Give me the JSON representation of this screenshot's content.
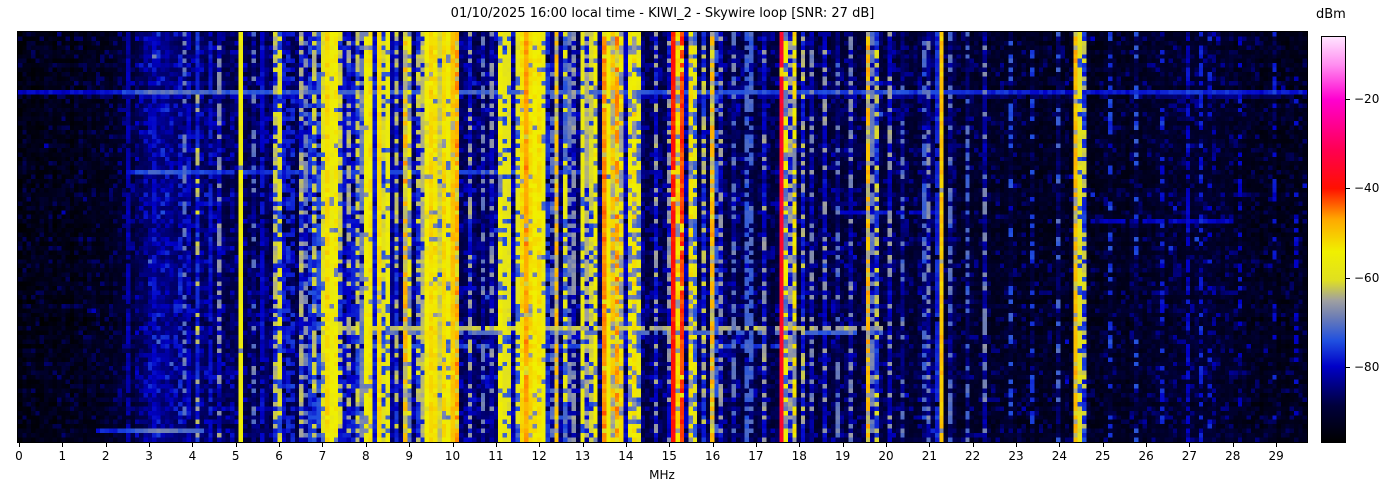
{
  "figure": {
    "title": "01/10/2025 16:00 local time - KIWI_2 - Skywire loop [SNR: 27 dB]",
    "xlabel": "MHz",
    "colorbar_label": "dBm"
  },
  "axes": {
    "colorbar_ticks": [
      {
        "value": -20,
        "label": "−20"
      },
      {
        "value": -40,
        "label": "−40"
      },
      {
        "value": -60,
        "label": "−60"
      },
      {
        "value": -80,
        "label": "−80"
      }
    ]
  },
  "chart_data": {
    "type": "heatmap",
    "subtype": "spectrogram-waterfall",
    "title": "01/10/2025 16:00 local time - KIWI_2 - Skywire loop [SNR: 27 dB]",
    "xlabel": "MHz",
    "colorbar_label": "dBm",
    "freq_min": 0,
    "freq_max": 29.75,
    "value_min": -97,
    "value_max": -6,
    "value_unit": "dBm",
    "x_tick_values": [
      0,
      1,
      2,
      3,
      4,
      5,
      6,
      7,
      8,
      9,
      10,
      11,
      12,
      13,
      14,
      15,
      16,
      17,
      18,
      19,
      20,
      21,
      22,
      23,
      24,
      25,
      26,
      27,
      28,
      29
    ],
    "colorbar_tick_values": [
      -20,
      -40,
      -60,
      -80
    ],
    "cols": 298,
    "rows": 92,
    "seed": 20250116,
    "colormap": [
      [
        0.0,
        "#000000"
      ],
      [
        0.09,
        "#00003c"
      ],
      [
        0.187,
        "#0000c8"
      ],
      [
        0.25,
        "#2050e0"
      ],
      [
        0.31,
        "#6f7fb4"
      ],
      [
        0.35,
        "#a0a0a0"
      ],
      [
        0.4,
        "#e0e020"
      ],
      [
        0.47,
        "#f0f000"
      ],
      [
        0.55,
        "#ffa800"
      ],
      [
        0.626,
        "#ff1000"
      ],
      [
        0.72,
        "#ff0050"
      ],
      [
        0.846,
        "#ff00d0"
      ],
      [
        0.93,
        "#ff8cf0"
      ],
      [
        1.0,
        "#ffe4ff"
      ]
    ],
    "noise_floor_dbm": [
      [
        0,
        -97
      ],
      [
        1,
        -96
      ],
      [
        2.2,
        -94.5
      ],
      [
        2.7,
        -90
      ],
      [
        3.1,
        -86
      ],
      [
        3.5,
        -85.5
      ],
      [
        3.8,
        -87.5
      ],
      [
        4.5,
        -89
      ],
      [
        6,
        -90
      ],
      [
        7,
        -89
      ],
      [
        9,
        -88.5
      ],
      [
        10.5,
        -88.5
      ],
      [
        12,
        -89
      ],
      [
        14,
        -89.5
      ],
      [
        16,
        -90.5
      ],
      [
        17,
        -90
      ],
      [
        18.5,
        -91
      ],
      [
        20,
        -91
      ],
      [
        21,
        -92.5
      ],
      [
        22,
        -93
      ],
      [
        23,
        -94
      ],
      [
        24.5,
        -94.5
      ],
      [
        26,
        -94
      ],
      [
        27,
        -92.5
      ],
      [
        27.8,
        -93
      ],
      [
        28.5,
        -95
      ],
      [
        29.75,
        -95.5
      ]
    ],
    "signals": [
      [
        2.55,
        0.06,
        -82,
        0.9
      ],
      [
        3.15,
        0.1,
        -80,
        0.8
      ],
      [
        3.8,
        0.06,
        -62,
        0.35
      ],
      [
        3.95,
        0.06,
        -80,
        0.8
      ],
      [
        4.17,
        0.06,
        -63,
        0.25
      ],
      [
        4.45,
        0.06,
        -79,
        0.9
      ],
      [
        4.65,
        0.06,
        -67,
        0.4
      ],
      [
        5.14,
        0.09,
        -56,
        0.97
      ],
      [
        5.45,
        0.06,
        -70,
        0.3
      ],
      [
        5.62,
        0.06,
        -80,
        0.8
      ],
      [
        5.78,
        0.06,
        -80,
        0.8
      ],
      [
        5.95,
        0.1,
        -63,
        0.6
      ],
      [
        6.07,
        0.07,
        -60,
        0.65
      ],
      [
        6.19,
        0.06,
        -66,
        0.5
      ],
      [
        6.3,
        0.06,
        -72,
        0.4
      ],
      [
        6.52,
        0.06,
        -64,
        0.5
      ],
      [
        6.68,
        0.06,
        -62,
        0.45
      ],
      [
        6.8,
        0.07,
        -60,
        0.6
      ],
      [
        7.0,
        0.07,
        -58,
        0.7
      ],
      [
        7.12,
        0.1,
        -52,
        0.95
      ],
      [
        7.22,
        0.08,
        -56,
        0.9
      ],
      [
        7.3,
        0.08,
        -54,
        0.9
      ],
      [
        7.42,
        0.06,
        -62,
        0.5
      ],
      [
        7.6,
        0.06,
        -60,
        0.5
      ],
      [
        7.8,
        0.06,
        -58,
        0.55
      ],
      [
        8.0,
        0.08,
        -55,
        0.8
      ],
      [
        8.1,
        0.08,
        -53,
        0.9
      ],
      [
        8.33,
        0.1,
        -52,
        0.95
      ],
      [
        8.38,
        0.06,
        -45,
        0.5
      ],
      [
        8.55,
        0.08,
        -56,
        0.8
      ],
      [
        8.75,
        0.06,
        -63,
        0.4
      ],
      [
        8.95,
        0.06,
        -48,
        0.45
      ],
      [
        9.05,
        0.06,
        -55,
        0.5
      ],
      [
        9.2,
        0.06,
        -60,
        0.4
      ],
      [
        9.4,
        0.1,
        -54,
        0.9
      ],
      [
        9.5,
        0.1,
        -52,
        0.9
      ],
      [
        9.65,
        0.1,
        -53,
        0.9
      ],
      [
        9.8,
        0.1,
        -52,
        0.9
      ],
      [
        9.9,
        0.08,
        -55,
        0.8
      ],
      [
        10.05,
        0.12,
        -50,
        0.97
      ],
      [
        10.15,
        0.06,
        -47,
        0.6
      ],
      [
        10.45,
        0.06,
        -65,
        0.4
      ],
      [
        10.7,
        0.06,
        -68,
        0.45
      ],
      [
        10.9,
        0.06,
        -66,
        0.4
      ],
      [
        11.15,
        0.07,
        -55,
        0.75
      ],
      [
        11.28,
        0.07,
        -50,
        0.8
      ],
      [
        11.5,
        0.06,
        -58,
        0.6
      ],
      [
        11.63,
        0.08,
        -52,
        0.9
      ],
      [
        11.75,
        0.09,
        -47,
        0.9
      ],
      [
        11.86,
        0.08,
        -52,
        0.85
      ],
      [
        11.95,
        0.08,
        -54,
        0.85
      ],
      [
        12.05,
        0.08,
        -53,
        0.9
      ],
      [
        12.16,
        0.07,
        -56,
        0.8
      ],
      [
        12.4,
        0.07,
        -49,
        0.55
      ],
      [
        12.6,
        0.06,
        -58,
        0.5
      ],
      [
        12.78,
        0.06,
        -56,
        0.5
      ],
      [
        13.05,
        0.07,
        -57,
        0.7
      ],
      [
        13.18,
        0.07,
        -54,
        0.75
      ],
      [
        13.3,
        0.07,
        -55,
        0.7
      ],
      [
        13.57,
        0.08,
        -44,
        0.95
      ],
      [
        13.7,
        0.06,
        -50,
        0.5
      ],
      [
        13.8,
        0.07,
        -46,
        0.55
      ],
      [
        13.95,
        0.06,
        -52,
        0.5
      ],
      [
        14.1,
        0.06,
        -55,
        0.6
      ],
      [
        14.22,
        0.06,
        -53,
        0.55
      ],
      [
        14.35,
        0.06,
        -57,
        0.5
      ],
      [
        14.7,
        0.05,
        -65,
        0.35
      ],
      [
        15.0,
        0.05,
        -66,
        0.55
      ],
      [
        15.12,
        0.09,
        -40,
        0.97
      ],
      [
        15.25,
        0.07,
        -52,
        0.7
      ],
      [
        15.33,
        0.08,
        -42,
        0.95
      ],
      [
        15.5,
        0.06,
        -53,
        0.6
      ],
      [
        15.62,
        0.05,
        -58,
        0.5
      ],
      [
        15.85,
        0.05,
        -62,
        0.4
      ],
      [
        16.05,
        0.06,
        -48,
        0.5
      ],
      [
        16.2,
        0.05,
        -66,
        0.45
      ],
      [
        16.5,
        0.05,
        -70,
        0.4
      ],
      [
        16.85,
        0.15,
        -72,
        0.6
      ],
      [
        17.2,
        0.05,
        -66,
        0.3
      ],
      [
        17.62,
        0.09,
        -36,
        0.97
      ],
      [
        17.75,
        0.06,
        -55,
        0.5
      ],
      [
        17.88,
        0.06,
        -47,
        0.6
      ],
      [
        18.1,
        0.05,
        -64,
        0.4
      ],
      [
        18.3,
        0.05,
        -68,
        0.4
      ],
      [
        18.6,
        0.05,
        -66,
        0.35
      ],
      [
        18.9,
        0.05,
        -70,
        0.4
      ],
      [
        19.2,
        0.05,
        -68,
        0.35
      ],
      [
        19.65,
        0.06,
        -47,
        0.5
      ],
      [
        19.8,
        0.05,
        -62,
        0.4
      ],
      [
        20.1,
        0.05,
        -66,
        0.4
      ],
      [
        20.4,
        0.05,
        -70,
        0.35
      ],
      [
        20.9,
        0.05,
        -72,
        0.4
      ],
      [
        21.05,
        0.05,
        -62,
        0.4
      ],
      [
        21.3,
        0.08,
        -50,
        0.95
      ],
      [
        21.55,
        0.05,
        -64,
        0.45
      ],
      [
        21.9,
        0.05,
        -72,
        0.35
      ],
      [
        22.3,
        0.05,
        -68,
        0.35
      ],
      [
        22.9,
        0.05,
        -74,
        0.3
      ],
      [
        23.4,
        0.05,
        -76,
        0.3
      ],
      [
        24.0,
        0.05,
        -72,
        0.3
      ],
      [
        24.45,
        0.08,
        -48,
        0.8
      ],
      [
        24.6,
        0.05,
        -62,
        0.4
      ],
      [
        25.2,
        0.05,
        -76,
        0.3
      ],
      [
        25.8,
        0.05,
        -74,
        0.3
      ],
      [
        26.4,
        0.05,
        -78,
        0.35
      ],
      [
        27.0,
        0.08,
        -80,
        0.6
      ],
      [
        27.3,
        0.08,
        -78,
        0.5
      ],
      [
        27.55,
        0.05,
        -66,
        0.2
      ],
      [
        28.2,
        0.05,
        -80,
        0.3
      ],
      [
        29.0,
        0.05,
        -78,
        0.3
      ],
      [
        29.5,
        0.05,
        -80,
        0.3
      ]
    ],
    "time_events": [
      {
        "row": 13,
        "f0": 0,
        "f1": 29.75,
        "boost": 16,
        "duty": 1
      },
      {
        "row": 14,
        "f0": 0,
        "f1": 29.75,
        "boost": 8,
        "duty": 0.6
      },
      {
        "row": 31,
        "f0": 2.5,
        "f1": 13.5,
        "boost": 13,
        "duty": 0.85
      },
      {
        "row": 40,
        "f0": 18.8,
        "f1": 21.3,
        "boost": 12,
        "duty": 0.8
      },
      {
        "row": 42,
        "f0": 24.8,
        "f1": 28.3,
        "boost": 13,
        "duty": 0.8
      },
      {
        "row": 66,
        "f0": 7,
        "f1": 20,
        "boost": 26,
        "duty": 0.75
      },
      {
        "row": 67,
        "f0": 7,
        "f1": 20,
        "boost": 18,
        "duty": 0.6
      },
      {
        "row": 70,
        "f0": 7.5,
        "f1": 18,
        "boost": 14,
        "duty": 0.5
      },
      {
        "row": 89,
        "f0": 1.8,
        "f1": 4.3,
        "boost": 17,
        "duty": 1
      }
    ]
  }
}
